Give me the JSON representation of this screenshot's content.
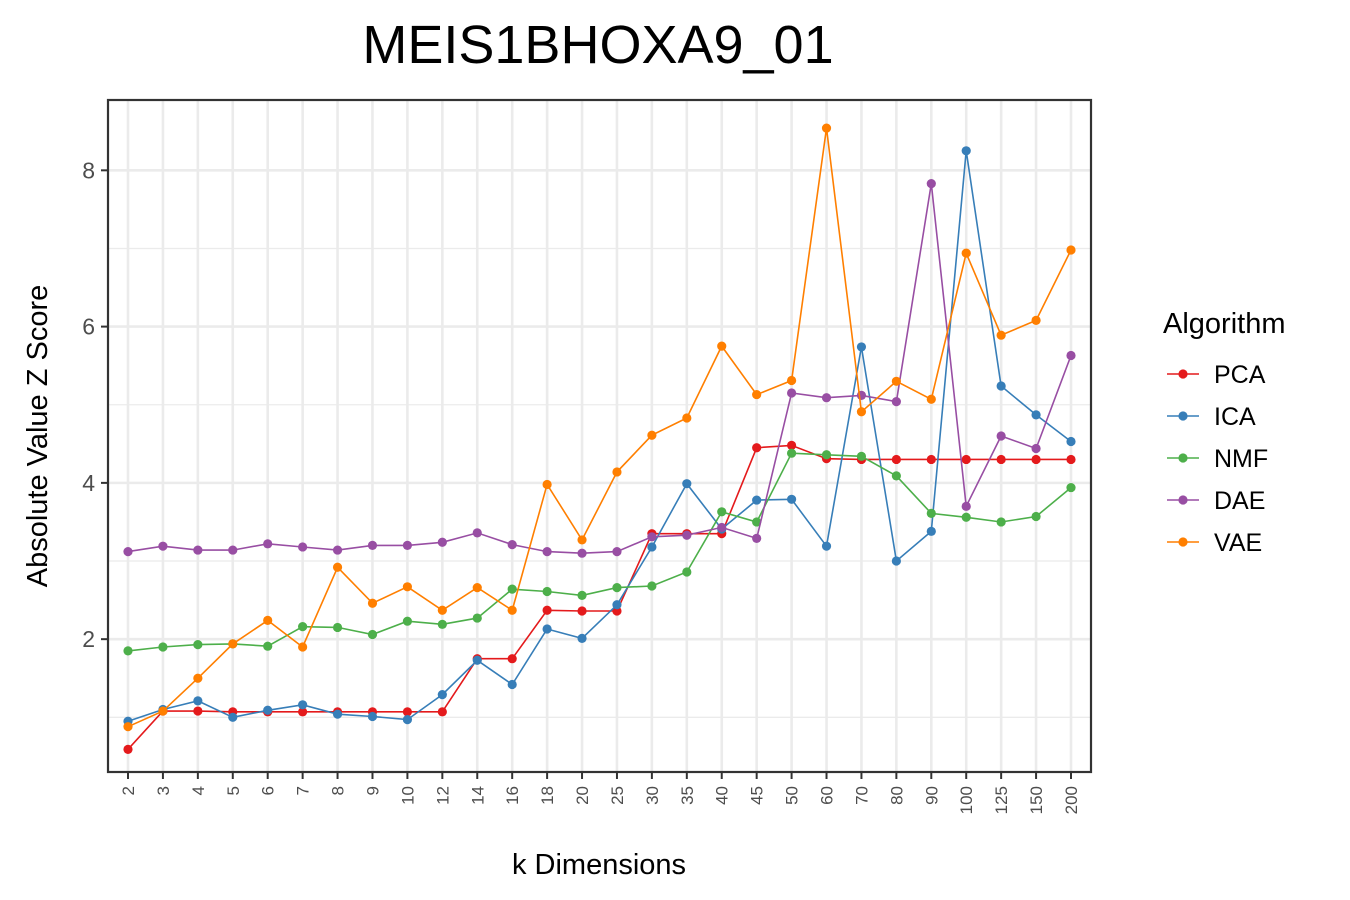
{
  "chart_data": {
    "type": "line",
    "title": "MEIS1BHOXA9_01",
    "xlabel": "k Dimensions",
    "ylabel": "Absolute Value Z Score",
    "ylim": [
      0.3,
      8.9
    ],
    "yticks": [
      2,
      4,
      6,
      8
    ],
    "categories": [
      "2",
      "3",
      "4",
      "5",
      "6",
      "7",
      "8",
      "9",
      "10",
      "12",
      "14",
      "16",
      "18",
      "20",
      "25",
      "30",
      "35",
      "40",
      "45",
      "50",
      "60",
      "70",
      "80",
      "90",
      "100",
      "125",
      "150",
      "200"
    ],
    "legend_title": "Algorithm",
    "legend_position": "right",
    "grid": true,
    "series": [
      {
        "name": "PCA",
        "color": "#e41a1c",
        "values": [
          0.59,
          1.08,
          1.08,
          1.07,
          1.07,
          1.07,
          1.07,
          1.07,
          1.07,
          1.07,
          1.75,
          1.75,
          2.37,
          2.36,
          2.36,
          3.35,
          3.35,
          3.35,
          4.45,
          4.48,
          4.31,
          4.3,
          4.3,
          4.3,
          4.3,
          4.3,
          4.3,
          4.3
        ]
      },
      {
        "name": "ICA",
        "color": "#377eb8",
        "values": [
          0.95,
          1.1,
          1.21,
          1.0,
          1.09,
          1.16,
          1.04,
          1.01,
          0.97,
          1.29,
          1.73,
          1.42,
          2.13,
          2.01,
          2.44,
          3.18,
          3.99,
          3.41,
          3.78,
          3.79,
          3.19,
          5.74,
          3.0,
          3.38,
          8.25,
          5.24,
          4.87,
          4.53
        ]
      },
      {
        "name": "NMF",
        "color": "#4daf4a",
        "values": [
          1.85,
          1.9,
          1.93,
          1.94,
          1.91,
          2.16,
          2.15,
          2.06,
          2.23,
          2.19,
          2.27,
          2.64,
          2.61,
          2.56,
          2.66,
          2.68,
          2.86,
          3.63,
          3.5,
          4.38,
          4.36,
          4.34,
          4.09,
          3.61,
          3.56,
          3.5,
          3.57,
          3.94
        ]
      },
      {
        "name": "DAE",
        "color": "#984ea3",
        "values": [
          3.12,
          3.19,
          3.14,
          3.14,
          3.22,
          3.18,
          3.14,
          3.2,
          3.2,
          3.24,
          3.36,
          3.21,
          3.12,
          3.1,
          3.12,
          3.31,
          3.33,
          3.43,
          3.29,
          5.15,
          5.09,
          5.12,
          5.04,
          7.83,
          3.7,
          4.6,
          4.44,
          5.63
        ]
      },
      {
        "name": "VAE",
        "color": "#ff7f00",
        "values": [
          0.88,
          1.08,
          1.5,
          1.94,
          2.24,
          1.9,
          2.92,
          2.46,
          2.67,
          2.37,
          2.66,
          2.37,
          3.98,
          3.27,
          4.14,
          4.61,
          4.83,
          5.75,
          5.13,
          5.31,
          8.54,
          4.91,
          5.3,
          5.07,
          6.94,
          5.89,
          6.08,
          6.98
        ]
      }
    ]
  }
}
